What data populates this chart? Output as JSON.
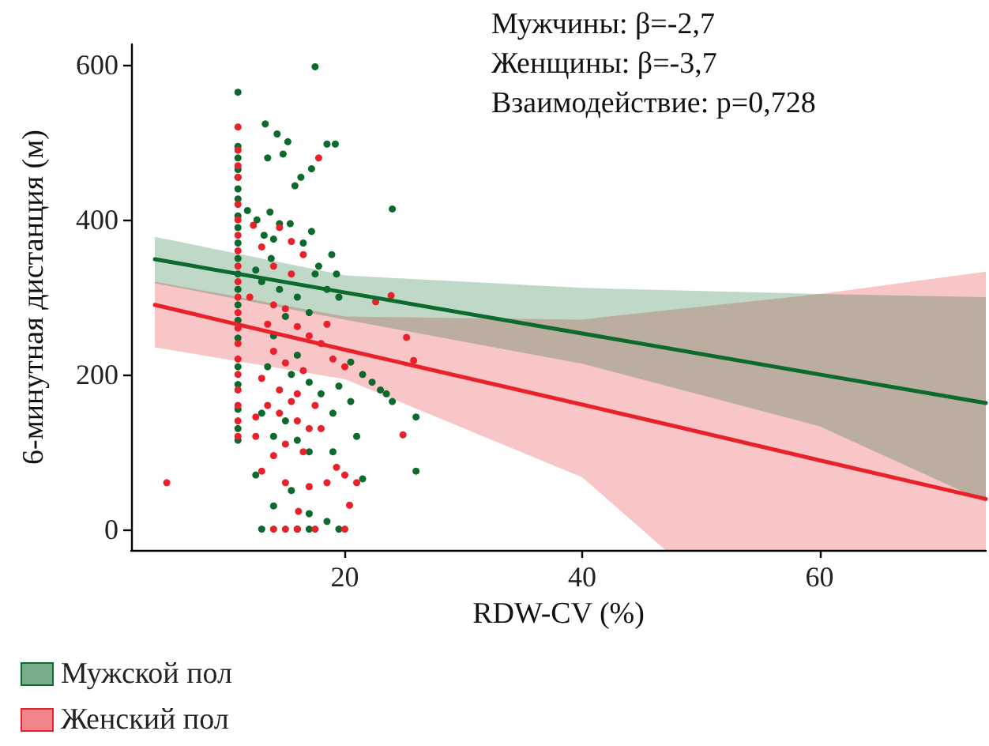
{
  "chart_data": {
    "type": "scatter",
    "xlabel": "RDW-CV (%)",
    "ylabel": "6-минутная дистанция (м)",
    "annotations": [
      "Мужчины: β=-2,7",
      "Женщины: β=-3,7",
      "Взаимодействие: p=0,728"
    ],
    "xlim": [
      2,
      74
    ],
    "xticks": [
      20,
      40,
      60
    ],
    "ylim": [
      -27,
      627
    ],
    "yticks": [
      0,
      200,
      400,
      600
    ],
    "grid": false,
    "legend": "bottom left",
    "series": [
      {
        "type": "line",
        "name": "Мужской пол",
        "color": "#0b6a2c",
        "line_style": "solid",
        "marker": "none",
        "x": [
          4,
          20,
          40,
          60,
          74
        ],
        "values": [
          349,
          306,
          253,
          200,
          163
        ],
        "lower": [
          318,
          271,
          214,
          133,
          35
        ],
        "upper": [
          378,
          328,
          312,
          304,
          300
        ]
      },
      {
        "type": "line",
        "name": "Женский пол",
        "color": "#e8212b",
        "line_style": "solid",
        "marker": "none",
        "x": [
          4,
          20,
          40,
          47,
          60,
          74
        ],
        "values": [
          290,
          232,
          161,
          136,
          89,
          39
        ],
        "lower": [
          235,
          194,
          67,
          -27,
          -27,
          -27
        ],
        "upper": [
          320,
          275,
          271,
          283,
          304,
          333
        ]
      },
      {
        "type": "scatter",
        "color": "#0b6a2c",
        "marker": "circle",
        "x": [
          11,
          11,
          11,
          11,
          11,
          11,
          11,
          11,
          11,
          11,
          11,
          11,
          11,
          11,
          11,
          11,
          11,
          11,
          11,
          11,
          11,
          17.5,
          13.3,
          14.3,
          15.2,
          13.5,
          14.8,
          17.2,
          18.5,
          19.2,
          16.3,
          15.8,
          11.8,
          12.6,
          13.7,
          13.2,
          14,
          13.8,
          14.5,
          15.4,
          16.5,
          17.2,
          17.8,
          24,
          19.3,
          18.9,
          17.5,
          18.5,
          19.5,
          16,
          14.5,
          13,
          12.5,
          15,
          17,
          14,
          16,
          13.5,
          15.5,
          17,
          18,
          19.5,
          20.5,
          21.5,
          22.3,
          23,
          23.5,
          24,
          26,
          26,
          20.5,
          21,
          19,
          17,
          15,
          14,
          13,
          16,
          12.5,
          15.5,
          14,
          18.5,
          17,
          19,
          21.5,
          13,
          17,
          19.5,
          16
        ],
        "values": [
          565,
          495,
          480,
          465,
          455,
          440,
          427,
          405,
          390,
          370,
          350,
          330,
          310,
          290,
          270,
          247,
          210,
          187,
          155,
          130,
          115,
          598,
          524,
          511,
          501,
          480,
          485,
          466,
          498,
          498,
          455,
          444,
          412,
          400,
          410,
          380,
          375,
          350,
          395,
          395,
          370,
          385,
          340,
          414,
          330,
          355,
          330,
          310,
          300,
          300,
          310,
          320,
          335,
          275,
          280,
          250,
          225,
          210,
          200,
          190,
          175,
          185,
          216,
          200,
          190,
          180,
          175,
          165,
          145,
          75,
          165,
          120,
          150,
          100,
          140,
          120,
          150,
          115,
          70,
          50,
          30,
          10,
          20,
          100,
          65,
          0,
          0,
          0,
          0
        ]
      },
      {
        "type": "scatter",
        "color": "#e8212b",
        "marker": "circle",
        "x": [
          5,
          11,
          11,
          11,
          11,
          11,
          11,
          11,
          11,
          11,
          11,
          11,
          11,
          11,
          11,
          11,
          11,
          11,
          11,
          11,
          11,
          17.8,
          12.3,
          14.5,
          15.5,
          13,
          14,
          15.5,
          16.5,
          12,
          14,
          15,
          13.5,
          16,
          17,
          18.5,
          19,
          20,
          18,
          14,
          15,
          16.5,
          13,
          14.5,
          15.5,
          16,
          17.5,
          13.5,
          12.5,
          14.5,
          16,
          17,
          18,
          12.5,
          15,
          16.5,
          14,
          13,
          15,
          17,
          18.5,
          20,
          21,
          19.3,
          20.4,
          16.1,
          23.9,
          22.6,
          25.2,
          25.8,
          24.9,
          14,
          15,
          16,
          17.5,
          20
        ],
        "values": [
          60,
          520,
          490,
          470,
          455,
          420,
          400,
          380,
          360,
          340,
          320,
          300,
          280,
          260,
          240,
          220,
          200,
          180,
          160,
          140,
          120,
          480,
          393,
          390,
          372,
          365,
          340,
          330,
          355,
          300,
          290,
          285,
          265,
          262,
          250,
          265,
          220,
          210,
          240,
          230,
          215,
          205,
          195,
          180,
          165,
          175,
          160,
          160,
          145,
          150,
          140,
          130,
          130,
          120,
          110,
          100,
          95,
          75,
          60,
          55,
          60,
          70,
          60,
          80,
          31,
          23,
          302,
          294,
          248,
          218,
          122,
          0,
          0,
          0,
          0,
          0
        ]
      }
    ]
  }
}
